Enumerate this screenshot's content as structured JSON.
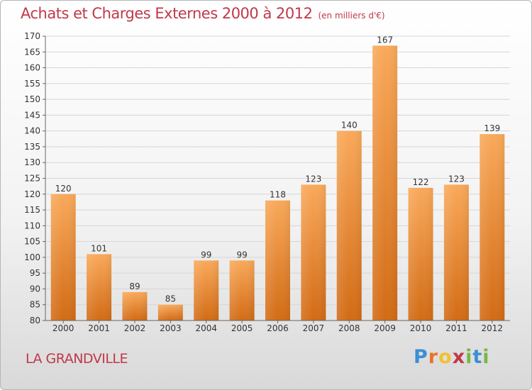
{
  "header": {
    "title": "Achats et Charges Externes 2000 à 2012",
    "unit": "(en milliers d'€)"
  },
  "footer": {
    "commune": "LA GRANDVILLE",
    "logo_parts": [
      {
        "text": "P",
        "color": "#3b8fd4"
      },
      {
        "text": "r",
        "color": "#e8732a"
      },
      {
        "text": "o",
        "color": "#f2c12e"
      },
      {
        "text": "x",
        "color": "#c0394a"
      },
      {
        "text": "i",
        "color": "#7ab648"
      },
      {
        "text": "t",
        "color": "#3b8fd4"
      },
      {
        "text": "i",
        "color": "#7ab648"
      }
    ]
  },
  "colors": {
    "bar_light": "#f9a95a",
    "bar_dark": "#d26b15",
    "grid": "#d6d6d6",
    "axis": "#666666"
  },
  "chart_data": {
    "type": "bar",
    "title": "Achats et Charges Externes 2000 à 2012",
    "subtitle": "(en milliers d'€)",
    "xlabel": "",
    "ylabel": "",
    "categories": [
      "2000",
      "2001",
      "2002",
      "2003",
      "2004",
      "2005",
      "2006",
      "2007",
      "2008",
      "2009",
      "2010",
      "2011",
      "2012"
    ],
    "values": [
      120,
      101,
      89,
      85,
      99,
      99,
      118,
      123,
      140,
      167,
      122,
      123,
      139
    ],
    "ylim": [
      80,
      170
    ],
    "ytick_step": 5,
    "grid": true,
    "data_labels": true
  }
}
